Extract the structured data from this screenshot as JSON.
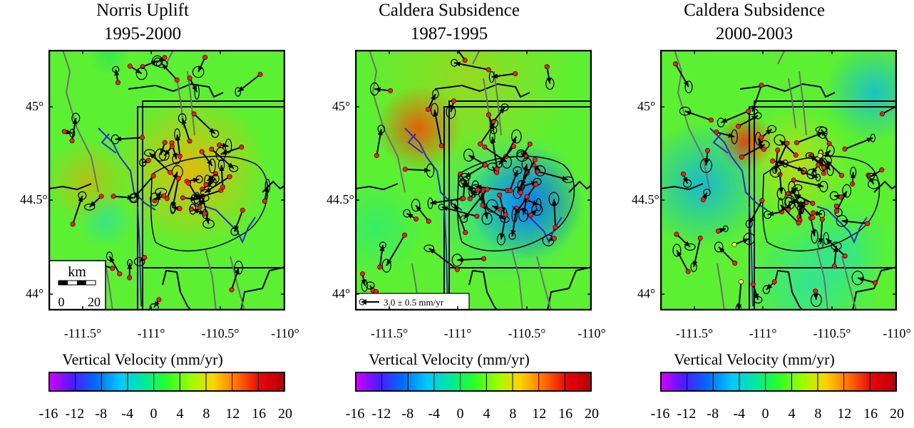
{
  "panels": [
    {
      "title_line1": "Norris Uplift",
      "title_line2": "1995-2000",
      "hot": "orange",
      "scale_bar": true
    },
    {
      "title_line1": "Caldera Subsidence",
      "title_line2": "1987-1995",
      "hot": "blue",
      "reference_vector": true
    },
    {
      "title_line1": "Caldera Subsidence",
      "title_line2": "2000-2003",
      "hot": "mixed"
    }
  ],
  "lat_ticks": [
    "45°",
    "44.5°",
    "44°"
  ],
  "lon_ticks": [
    "-111.5°",
    "-111°",
    "-110.5°",
    "-110°"
  ],
  "colorbar": {
    "title": "Vertical Velocity (mm/yr)",
    "ticks": [
      "-16",
      "-12",
      "-8",
      "-4",
      "0",
      "4",
      "8",
      "12",
      "16",
      "20"
    ],
    "colors": [
      "#d400ff",
      "#4a1cff",
      "#006bff",
      "#00c8ff",
      "#00e8a0",
      "#28ff28",
      "#9cff00",
      "#ffd200",
      "#ff6e00",
      "#e8000a",
      "#b40000"
    ]
  },
  "scale_bar": {
    "unit": "km",
    "left": "0",
    "right": "20"
  },
  "reference_vector": {
    "label": "3.0 ± 0.5 mm/yr"
  },
  "colors": {
    "station": "#ff1a1a",
    "yellow_station": "#ffff55",
    "boundary": "#000000",
    "river": "#2c2ccc",
    "fault": "#6a6a6a"
  }
}
